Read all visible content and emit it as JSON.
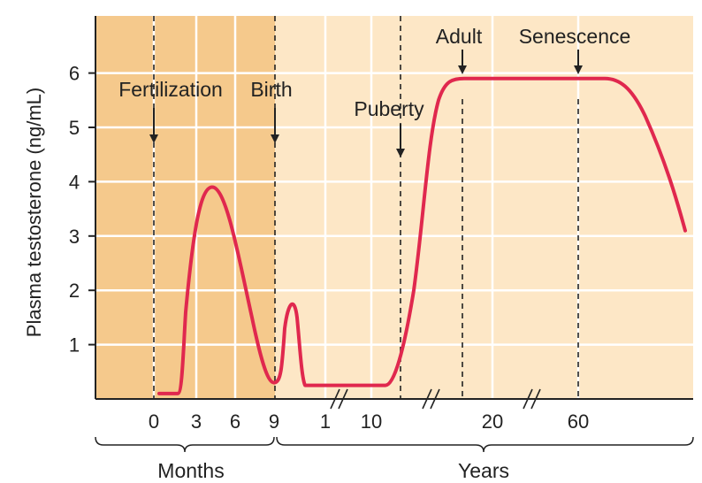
{
  "chart_data": {
    "type": "line",
    "title": "",
    "ylabel": "Plasma testosterone (ng/mL)",
    "xlabel": "",
    "ylim": [
      0,
      7
    ],
    "y_ticks": [
      1,
      2,
      3,
      4,
      5,
      6
    ],
    "grid": true,
    "x_tick_labels": [
      "0",
      "3",
      "6",
      "9",
      "1",
      "10",
      "20",
      "60"
    ],
    "period_labels": {
      "months": "Months",
      "years": "Years"
    },
    "annotations": [
      {
        "id": "fertilization",
        "text": "Fertilization"
      },
      {
        "id": "birth",
        "text": "Birth"
      },
      {
        "id": "puberty",
        "text": "Puberty"
      },
      {
        "id": "adult",
        "text": "Adult"
      },
      {
        "id": "senescence",
        "text": "Senescence"
      }
    ],
    "series": [
      {
        "line_color": "#e0284e",
        "points": [
          {
            "x": "fertilization + 0.5 months",
            "y": 0.1
          },
          {
            "x": "fertilization + 1.5 months",
            "y": 0.1
          },
          {
            "x": "fertilization + 2.5 months",
            "y": 1.6
          },
          {
            "x": "fertilization + 4.5 months",
            "y": 3.9
          },
          {
            "x": "fertilization + 7 months",
            "y": 1.2
          },
          {
            "x": "fertilization + 9 months",
            "y": 0.3
          },
          {
            "x": "birth + 1 month",
            "y": 1.4
          },
          {
            "x": "birth + 1.5 months",
            "y": 1.8
          },
          {
            "x": "birth + 2 months",
            "y": 1.3
          },
          {
            "x": "birth + 2.5 months",
            "y": 0.25
          },
          {
            "x": "age 10 years",
            "y": 0.25
          },
          {
            "x": "puberty",
            "y": 0.7
          },
          {
            "x": "adult",
            "y": 5.8
          },
          {
            "x": "adult to senescence",
            "y": 5.9
          },
          {
            "x": "old age",
            "y": 3.1
          }
        ]
      }
    ],
    "colors": {
      "prenatal_background": "#f5c98c",
      "postnatal_background": "#fde7c6",
      "curve": "#e0284e",
      "axis": "#222222",
      "grid": "#ffffff"
    }
  }
}
